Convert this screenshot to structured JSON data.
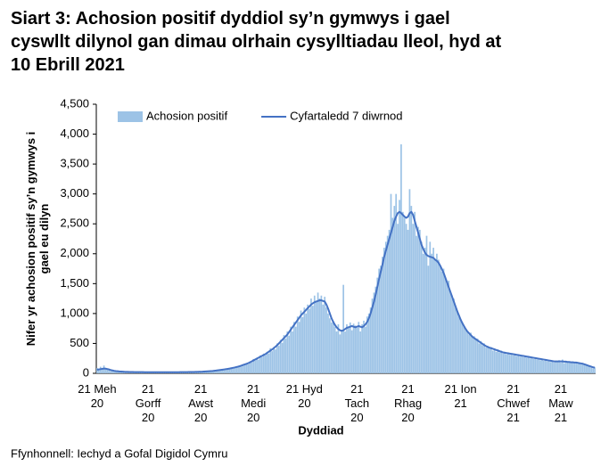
{
  "chart_data": {
    "type": "bar",
    "title": "Siart 3: Achosion positif dyddiol sy’n gymwys i gael\ncyswllt dilynol gan dimau olrhain cysylltiadau lleol, hyd at\n10 Ebrill 2021",
    "y_label": "Nifer yr achosion positif sy’n gymwys i\ngael eu dilyn",
    "x_label": "Dyddiad",
    "legend": "top",
    "ylim": [
      0,
      4500
    ],
    "yticks": [
      0,
      500,
      {
        "value": 1000,
        "label": "1,000"
      },
      {
        "value": 1500,
        "label": "1,500"
      },
      {
        "value": 2000,
        "label": "2,000"
      },
      {
        "value": 2500,
        "label": "2,500"
      },
      {
        "value": 3000,
        "label": "3,000"
      },
      {
        "value": 3500,
        "label": "3,500"
      },
      {
        "value": 4000,
        "label": "4,000"
      },
      {
        "value": 4500,
        "label": "4,500"
      }
    ],
    "categories": [
      "21 Meh\n20",
      null,
      null,
      null,
      null,
      null,
      null,
      null,
      null,
      null,
      null,
      null,
      null,
      null,
      null,
      null,
      null,
      null,
      null,
      null,
      null,
      null,
      null,
      null,
      null,
      null,
      null,
      null,
      null,
      null,
      "21\nGorff\n20",
      null,
      null,
      null,
      null,
      null,
      null,
      null,
      null,
      null,
      null,
      null,
      null,
      null,
      null,
      null,
      null,
      null,
      null,
      null,
      null,
      null,
      null,
      null,
      null,
      null,
      null,
      null,
      null,
      null,
      null,
      "21\nAwst\n20",
      null,
      null,
      null,
      null,
      null,
      null,
      null,
      null,
      null,
      null,
      null,
      null,
      null,
      null,
      null,
      null,
      null,
      null,
      null,
      null,
      null,
      null,
      null,
      null,
      null,
      null,
      null,
      null,
      null,
      null,
      "21\nMedi\n20",
      null,
      null,
      null,
      null,
      null,
      null,
      null,
      null,
      null,
      null,
      null,
      null,
      null,
      null,
      null,
      null,
      null,
      null,
      null,
      null,
      null,
      null,
      null,
      null,
      null,
      null,
      null,
      null,
      null,
      "21 Hyd\n20",
      null,
      null,
      null,
      null,
      null,
      null,
      null,
      null,
      null,
      null,
      null,
      null,
      null,
      null,
      null,
      null,
      null,
      null,
      null,
      null,
      null,
      null,
      null,
      null,
      null,
      null,
      null,
      null,
      null,
      null,
      "21\nTach\n20",
      null,
      null,
      null,
      null,
      null,
      null,
      null,
      null,
      null,
      null,
      null,
      null,
      null,
      null,
      null,
      null,
      null,
      null,
      null,
      null,
      null,
      null,
      null,
      null,
      null,
      null,
      null,
      null,
      null,
      "21\nRhag\n20",
      null,
      null,
      null,
      null,
      null,
      null,
      null,
      null,
      null,
      null,
      null,
      null,
      null,
      null,
      null,
      null,
      null,
      null,
      null,
      null,
      null,
      null,
      null,
      null,
      null,
      null,
      null,
      null,
      null,
      null,
      "21 Ion\n21",
      null,
      null,
      null,
      null,
      null,
      null,
      null,
      null,
      null,
      null,
      null,
      null,
      null,
      null,
      null,
      null,
      null,
      null,
      null,
      null,
      null,
      null,
      null,
      null,
      null,
      null,
      null,
      null,
      null,
      null,
      "21\nChwef\n21",
      null,
      null,
      null,
      null,
      null,
      null,
      null,
      null,
      null,
      null,
      null,
      null,
      null,
      null,
      null,
      null,
      null,
      null,
      null,
      null,
      null,
      null,
      null,
      null,
      null,
      null,
      null,
      "21\nMaw\n21",
      null,
      null,
      null,
      null,
      null,
      null,
      null,
      null,
      null,
      null,
      null,
      null,
      null,
      null,
      null,
      null,
      null,
      null,
      null,
      null
    ],
    "series": [
      {
        "name": "Achosion positif",
        "type": "bar",
        "color": "#9dc3e6",
        "values": [
          90,
          60,
          110,
          70,
          130,
          80,
          60,
          70,
          40,
          50,
          30,
          45,
          40,
          25,
          35,
          20,
          30,
          28,
          20,
          25,
          25,
          20,
          18,
          26,
          15,
          22,
          20,
          24,
          18,
          16,
          20,
          22,
          15,
          18,
          20,
          14,
          19,
          22,
          16,
          18,
          20,
          15,
          18,
          22,
          16,
          20,
          18,
          24,
          15,
          20,
          22,
          18,
          24,
          20,
          25,
          18,
          26,
          22,
          28,
          24,
          30,
          25,
          32,
          28,
          36,
          30,
          40,
          35,
          44,
          40,
          50,
          44,
          60,
          52,
          68,
          58,
          75,
          70,
          88,
          78,
          100,
          90,
          115,
          100,
          130,
          115,
          150,
          140,
          170,
          150,
          200,
          180,
          240,
          210,
          260,
          230,
          300,
          270,
          330,
          300,
          360,
          330,
          420,
          370,
          440,
          400,
          500,
          460,
          560,
          510,
          640,
          580,
          700,
          630,
          780,
          700,
          860,
          780,
          950,
          860,
          1050,
          940,
          1100,
          1000,
          1150,
          1080,
          1250,
          1130,
          1300,
          1200,
          1350,
          1250,
          1300,
          1150,
          1280,
          1100,
          1000,
          920,
          850,
          880,
          780,
          700,
          820,
          650,
          720,
          1480,
          700,
          820,
          760,
          850,
          720,
          830,
          800,
          760,
          860,
          700,
          820,
          880,
          780,
          950,
          1000,
          1100,
          1250,
          1350,
          1450,
          1600,
          1750,
          1800,
          1950,
          2100,
          2200,
          2300,
          2400,
          3000,
          2600,
          2800,
          3000,
          2500,
          2900,
          3830,
          2700,
          2600,
          2500,
          2400,
          3080,
          2800,
          2500,
          2700,
          2300,
          2450,
          2400,
          2200,
          2000,
          2100,
          2300,
          1800,
          2200,
          2000,
          2100,
          1900,
          2000,
          1900,
          1800,
          1700,
          1750,
          1600,
          1500,
          1550,
          1350,
          1300,
          1250,
          1100,
          1050,
          950,
          900,
          860,
          780,
          750,
          700,
          650,
          680,
          600,
          620,
          560,
          580,
          500,
          540,
          470,
          500,
          430,
          460,
          420,
          440,
          380,
          420,
          360,
          400,
          350,
          380,
          330,
          360,
          320,
          350,
          310,
          340,
          300,
          330,
          290,
          320,
          280,
          300,
          270,
          290,
          260,
          280,
          250,
          270,
          240,
          260,
          230,
          250,
          220,
          240,
          210,
          230,
          200,
          220,
          190,
          210,
          180,
          210,
          190,
          220,
          180,
          230,
          170,
          210,
          200,
          190,
          180,
          200,
          170,
          190,
          160,
          180,
          150,
          170,
          140,
          150,
          120,
          110,
          90,
          80,
          100
        ]
      },
      {
        "name": "Cyfartaledd 7 diwrnod",
        "type": "line",
        "color": "#4472c4",
        "values": [
          60,
          65,
          70,
          75,
          80,
          78,
          72,
          65,
          55,
          48,
          42,
          38,
          35,
          32,
          30,
          28,
          26,
          25,
          24,
          23,
          22,
          22,
          21,
          21,
          20,
          20,
          20,
          20,
          19,
          19,
          19,
          19,
          18,
          18,
          18,
          18,
          18,
          18,
          18,
          18,
          18,
          18,
          18,
          18,
          18,
          19,
          19,
          19,
          19,
          20,
          20,
          20,
          21,
          21,
          22,
          22,
          23,
          23,
          24,
          25,
          26,
          27,
          28,
          30,
          32,
          34,
          36,
          38,
          40,
          43,
          46,
          50,
          54,
          58,
          62,
          66,
          70,
          75,
          80,
          86,
          92,
          98,
          105,
          112,
          120,
          130,
          140,
          150,
          160,
          170,
          185,
          200,
          215,
          230,
          245,
          260,
          275,
          290,
          305,
          320,
          340,
          360,
          380,
          400,
          420,
          445,
          470,
          500,
          530,
          560,
          590,
          620,
          650,
          690,
          730,
          770,
          810,
          850,
          890,
          930,
          970,
          1000,
          1030,
          1060,
          1090,
          1120,
          1150,
          1170,
          1190,
          1200,
          1210,
          1220,
          1220,
          1210,
          1200,
          1150,
          1080,
          1000,
          920,
          860,
          810,
          770,
          740,
          720,
          710,
          720,
          740,
          760,
          770,
          780,
          790,
          780,
          770,
          780,
          790,
          780,
          770,
          790,
          820,
          860,
          920,
          1000,
          1100,
          1200,
          1320,
          1450,
          1580,
          1700,
          1820,
          1950,
          2050,
          2150,
          2250,
          2350,
          2450,
          2550,
          2620,
          2680,
          2700,
          2680,
          2650,
          2620,
          2600,
          2620,
          2680,
          2700,
          2650,
          2550,
          2450,
          2350,
          2250,
          2150,
          2080,
          2020,
          1980,
          1960,
          1950,
          1940,
          1930,
          1900,
          1880,
          1850,
          1800,
          1740,
          1680,
          1600,
          1520,
          1440,
          1360,
          1280,
          1200,
          1120,
          1040,
          970,
          900,
          840,
          790,
          740,
          700,
          670,
          640,
          610,
          590,
          570,
          550,
          530,
          510,
          490,
          470,
          455,
          440,
          430,
          420,
          410,
          400,
          390,
          380,
          370,
          360,
          350,
          345,
          340,
          335,
          330,
          325,
          320,
          315,
          310,
          305,
          300,
          295,
          290,
          285,
          280,
          275,
          270,
          265,
          260,
          255,
          250,
          245,
          240,
          235,
          230,
          225,
          220,
          215,
          210,
          205,
          200,
          200,
          200,
          200,
          200,
          200,
          195,
          195,
          190,
          190,
          185,
          185,
          180,
          180,
          175,
          170,
          165,
          160,
          150,
          140,
          130,
          120,
          110,
          100,
          95
        ]
      }
    ]
  },
  "source": "Ffynhonnell: Iechyd a Gofal Digidol Cymru"
}
